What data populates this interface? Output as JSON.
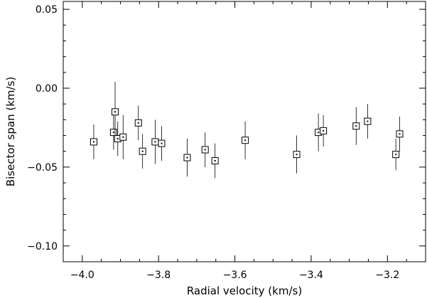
{
  "chart_data": {
    "type": "scatter",
    "xlabel": "Radial velocity (km/s)",
    "ylabel": "Bisector span (km/s)",
    "xlim": [
      -4.05,
      -3.1
    ],
    "ylim": [
      -0.11,
      0.055
    ],
    "xticks": [
      -4.0,
      -3.8,
      -3.6,
      -3.4,
      -3.2
    ],
    "xtick_labels": [
      "−4.0",
      "−3.8",
      "−3.6",
      "−3.4",
      "−3.2"
    ],
    "yticks": [
      -0.1,
      -0.05,
      0.0,
      0.05
    ],
    "ytick_labels": [
      "−0.10",
      "−0.05",
      "0.00",
      "0.05"
    ],
    "grid": false,
    "marker": "square",
    "series": [
      {
        "points": [
          {
            "x": -3.97,
            "y": -0.034,
            "err": 0.011
          },
          {
            "x": -3.918,
            "y": -0.028,
            "err": 0.011
          },
          {
            "x": -3.914,
            "y": -0.015,
            "err": 0.019
          },
          {
            "x": -3.907,
            "y": -0.032,
            "err": 0.011
          },
          {
            "x": -3.893,
            "y": -0.031,
            "err": 0.014
          },
          {
            "x": -3.853,
            "y": -0.022,
            "err": 0.011
          },
          {
            "x": -3.842,
            "y": -0.04,
            "err": 0.011
          },
          {
            "x": -3.809,
            "y": -0.034,
            "err": 0.014
          },
          {
            "x": -3.792,
            "y": -0.035,
            "err": 0.011
          },
          {
            "x": -3.725,
            "y": -0.044,
            "err": 0.012
          },
          {
            "x": -3.678,
            "y": -0.039,
            "err": 0.011
          },
          {
            "x": -3.652,
            "y": -0.046,
            "err": 0.011
          },
          {
            "x": -3.573,
            "y": -0.033,
            "err": 0.012
          },
          {
            "x": -3.438,
            "y": -0.042,
            "err": 0.012
          },
          {
            "x": -3.381,
            "y": -0.028,
            "err": 0.012
          },
          {
            "x": -3.368,
            "y": -0.027,
            "err": 0.01
          },
          {
            "x": -3.282,
            "y": -0.024,
            "err": 0.012
          },
          {
            "x": -3.252,
            "y": -0.021,
            "err": 0.011
          },
          {
            "x": -3.178,
            "y": -0.042,
            "err": 0.01
          },
          {
            "x": -3.168,
            "y": -0.029,
            "err": 0.011
          }
        ]
      }
    ]
  }
}
